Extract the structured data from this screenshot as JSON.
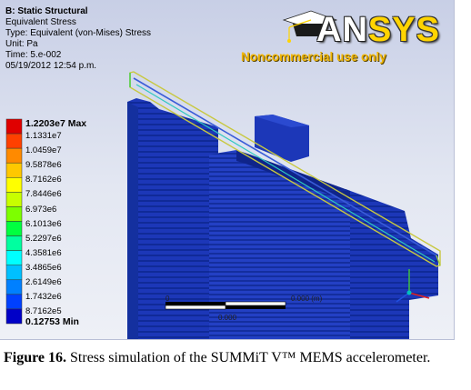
{
  "analysis": {
    "title": "B: Static Structural",
    "result": "Equivalent Stress",
    "type": "Type: Equivalent (von-Mises) Stress",
    "unit": "Unit: Pa",
    "time": "Time: 5.e-002",
    "date": "05/19/2012 12:54 p.m."
  },
  "logo": {
    "word_an": "AN",
    "word_sys": "SYS",
    "subtitle": "Noncommercial use only"
  },
  "legend": {
    "max_label": "1.2203e7 Max",
    "min_label": "0.12753 Min",
    "values": [
      "1.1331e7",
      "1.0459e7",
      "9.5878e6",
      "8.7162e6",
      "7.8446e6",
      "6.973e6",
      "6.1013e6",
      "5.2297e6",
      "4.3581e6",
      "3.4865e6",
      "2.6149e6",
      "1.7432e6",
      "8.7162e5"
    ],
    "colors": [
      "#e00000",
      "#ff4000",
      "#ff8a00",
      "#ffc800",
      "#ffff00",
      "#c8ff00",
      "#7dff00",
      "#00ff40",
      "#00ffa0",
      "#00ffff",
      "#00c0ff",
      "#0080ff",
      "#0040ff",
      "#0000c8"
    ]
  },
  "scale_bar": {
    "zero": "0",
    "top_label": "0.000 (m)",
    "mid_label": "0.000"
  },
  "caption": {
    "label": "Figure 16.",
    "text": " Stress simulation of the SUMMiT V™ MEMS accelerometer."
  },
  "colors": {
    "structure_blue": "#1c37b8",
    "structure_dark": "#0d1f78",
    "beam_outline": "#c8c840"
  }
}
